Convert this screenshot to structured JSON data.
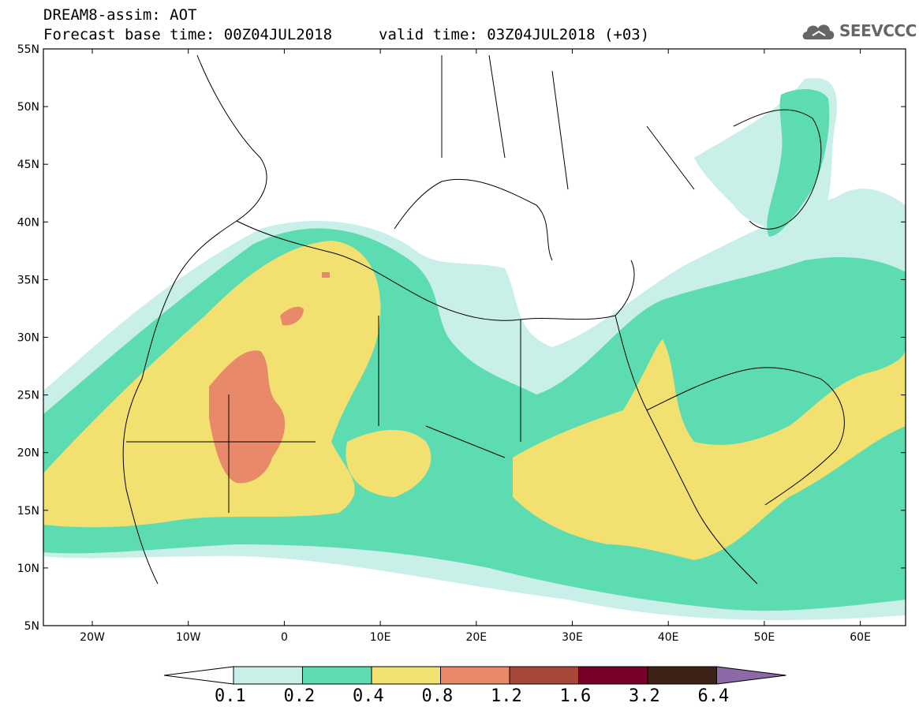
{
  "header": {
    "line1": "DREAM8-assim: AOT",
    "line2": "Forecast base time: 00Z04JUL2018",
    "valid": "valid time: 03Z04JUL2018 (+03)",
    "logo_text": "SEEVCCC",
    "logo_icon": "cloud-icon"
  },
  "axes": {
    "lat_labels": [
      "55N",
      "50N",
      "45N",
      "40N",
      "35N",
      "30N",
      "25N",
      "20N",
      "15N",
      "10N",
      "5N"
    ],
    "lon_labels": [
      "20W",
      "10W",
      "0",
      "10E",
      "20E",
      "30E",
      "40E",
      "50E",
      "60E"
    ]
  },
  "colorbar": {
    "labels": [
      "0.1",
      "0.2",
      "0.4",
      "0.8",
      "1.2",
      "1.6",
      "3.2",
      "6.4"
    ],
    "colors": [
      "#ffffff",
      "#c8f0e8",
      "#5cdcb0",
      "#f2e070",
      "#e88a6a",
      "#a8483a",
      "#7a0028",
      "#3b2214",
      "#8c6aa8"
    ]
  },
  "map_colors": {
    "level_0_1": "#c8f0e8",
    "level_0_2": "#5cdcb0",
    "level_0_4": "#f2e070",
    "level_0_8": "#e88a6a"
  }
}
